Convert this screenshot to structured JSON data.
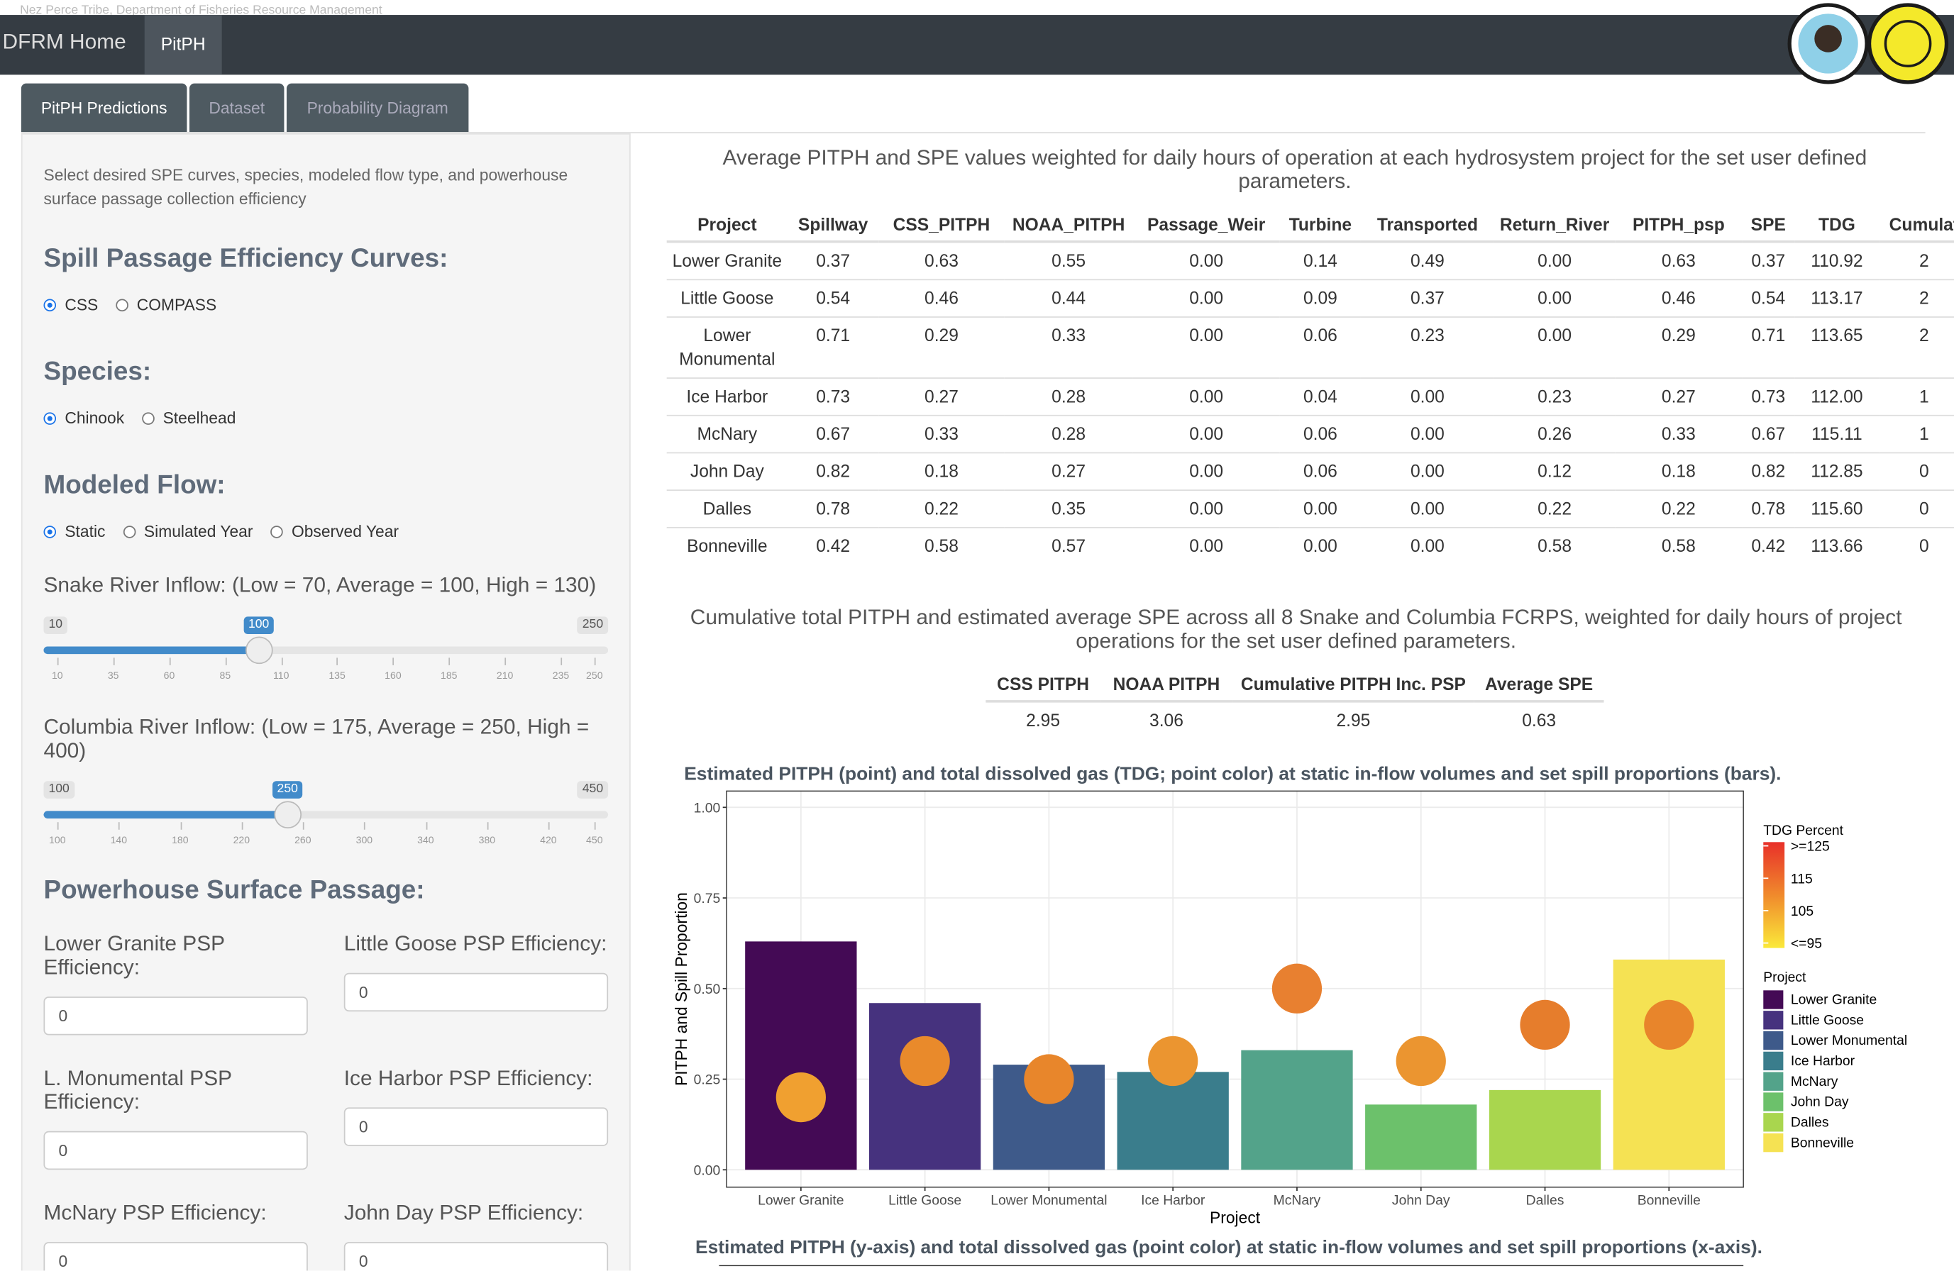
{
  "header": {
    "org": "Nez Perce Tribe, Department of Fisheries Resource Management",
    "brand": "DFRM Home",
    "nav": [
      "PitPH"
    ]
  },
  "tabs": [
    {
      "label": "PitPH Predictions",
      "active": true
    },
    {
      "label": "Dataset",
      "active": false
    },
    {
      "label": "Probability Diagram",
      "active": false
    }
  ],
  "sidebar": {
    "intro": "Select desired SPE curves, species, modeled flow type, and powerhouse surface passage collection efficiency",
    "radio_groups": [
      {
        "title": "Spill Passage Efficiency Curves:",
        "options": [
          {
            "label": "CSS",
            "checked": true
          },
          {
            "label": "COMPASS",
            "checked": false
          }
        ]
      },
      {
        "title": "Species:",
        "options": [
          {
            "label": "Chinook",
            "checked": true
          },
          {
            "label": "Steelhead",
            "checked": false
          }
        ]
      },
      {
        "title": "Modeled Flow:",
        "options": [
          {
            "label": "Static",
            "checked": true
          },
          {
            "label": "Simulated Year",
            "checked": false
          },
          {
            "label": "Observed Year",
            "checked": false
          }
        ]
      }
    ],
    "sliders": [
      {
        "label": "Snake River Inflow: (Low = 70, Average = 100, High = 130)",
        "min": 10,
        "max": 250,
        "value": 100,
        "ticks": [
          10,
          35,
          60,
          85,
          110,
          135,
          160,
          185,
          210,
          235,
          250
        ]
      },
      {
        "label": "Columbia River Inflow: (Low = 175, Average = 250, High = 400)",
        "min": 100,
        "max": 450,
        "value": 250,
        "ticks": [
          100,
          140,
          180,
          220,
          260,
          300,
          340,
          380,
          420,
          450
        ]
      }
    ],
    "psp_title": "Powerhouse Surface Passage:",
    "psp_fields": [
      {
        "label": "Lower Granite PSP Efficiency:",
        "value": "0"
      },
      {
        "label": "Little Goose PSP Efficiency:",
        "value": "0"
      },
      {
        "label": "L. Monumental PSP Efficiency:",
        "value": "0"
      },
      {
        "label": "Ice Harbor PSP Efficiency:",
        "value": "0"
      },
      {
        "label": "McNary PSP Efficiency:",
        "value": "0"
      },
      {
        "label": "John Day PSP Efficiency:",
        "value": "0"
      }
    ]
  },
  "table1": {
    "caption": "Average PITPH and SPE values weighted for daily hours of operation at each hydrosystem project for the set user defined parameters.",
    "columns": [
      "Project",
      "Spillway",
      "CSS_PITPH",
      "NOAA_PITPH",
      "Passage_Weir",
      "Turbine",
      "Transported",
      "Return_River",
      "PITPH_psp",
      "SPE",
      "TDG",
      "Cumulat"
    ],
    "rows": [
      [
        "Lower Granite",
        "0.37",
        "0.63",
        "0.55",
        "0.00",
        "0.14",
        "0.49",
        "0.00",
        "0.63",
        "0.37",
        "110.92",
        "2"
      ],
      [
        "Little Goose",
        "0.54",
        "0.46",
        "0.44",
        "0.00",
        "0.09",
        "0.37",
        "0.00",
        "0.46",
        "0.54",
        "113.17",
        "2"
      ],
      [
        "Lower Monumental",
        "0.71",
        "0.29",
        "0.33",
        "0.00",
        "0.06",
        "0.23",
        "0.00",
        "0.29",
        "0.71",
        "113.65",
        "2"
      ],
      [
        "Ice Harbor",
        "0.73",
        "0.27",
        "0.28",
        "0.00",
        "0.04",
        "0.00",
        "0.23",
        "0.27",
        "0.73",
        "112.00",
        "1"
      ],
      [
        "McNary",
        "0.67",
        "0.33",
        "0.28",
        "0.00",
        "0.06",
        "0.00",
        "0.26",
        "0.33",
        "0.67",
        "115.11",
        "1"
      ],
      [
        "John Day",
        "0.82",
        "0.18",
        "0.27",
        "0.00",
        "0.06",
        "0.00",
        "0.12",
        "0.18",
        "0.82",
        "112.85",
        "0"
      ],
      [
        "Dalles",
        "0.78",
        "0.22",
        "0.35",
        "0.00",
        "0.00",
        "0.00",
        "0.22",
        "0.22",
        "0.78",
        "115.60",
        "0"
      ],
      [
        "Bonneville",
        "0.42",
        "0.58",
        "0.57",
        "0.00",
        "0.00",
        "0.00",
        "0.58",
        "0.58",
        "0.42",
        "113.66",
        "0"
      ]
    ]
  },
  "table2": {
    "caption": "Cumulative total PITPH and estimated average SPE across all 8 Snake and Columbia FCRPS, weighted for daily hours of project operations for the set user defined parameters.",
    "columns": [
      "CSS PITPH",
      "NOAA PITPH",
      "Cumulative PITPH Inc. PSP",
      "Average SPE"
    ],
    "rows": [
      [
        "2.95",
        "3.06",
        "2.95",
        "0.63"
      ]
    ]
  },
  "chart_data": {
    "type": "bar",
    "title": "Estimated PITPH (point) and total dissolved gas (TDG; point color) at static in-flow volumes and set spill proportions (bars).",
    "y_label": "PITPH and Spill Proportion",
    "x_label": "Project",
    "categories": [
      "Lower Granite",
      "Little Goose",
      "Lower Monumental",
      "Ice Harbor",
      "McNary",
      "John Day",
      "Dalles",
      "Bonneville"
    ],
    "bar_values": [
      0.63,
      0.46,
      0.29,
      0.27,
      0.33,
      0.18,
      0.22,
      0.58
    ],
    "bar_colors": [
      "#440a55",
      "#46327e",
      "#3e5a8a",
      "#3a7d8c",
      "#53a38a",
      "#6cc16b",
      "#a9d64e",
      "#f5e253"
    ],
    "point_values": [
      0.2,
      0.3,
      0.25,
      0.3,
      0.5,
      0.3,
      0.4,
      0.4
    ],
    "point_colors": [
      "#f0a030",
      "#e98a2b",
      "#e8862b",
      "#eb9530",
      "#e88030",
      "#eb9530",
      "#e67d2c",
      "#e8852b"
    ],
    "ylim": [
      -0.048,
      1.045
    ],
    "yticks": [
      {
        "value": 0,
        "label": "0.00"
      },
      {
        "value": 0.25,
        "label": "0.25"
      },
      {
        "value": 0.5,
        "label": "0.50"
      },
      {
        "value": 0.75,
        "label": "0.75"
      },
      {
        "value": 1,
        "label": "1.00"
      }
    ],
    "grid": true,
    "colorbar": {
      "title": "TDG Percent",
      "ticks": [
        {
          "value": 125,
          "label": ">=125"
        },
        115,
        105,
        {
          "value": 95,
          "label": "<=95"
        }
      ],
      "colors": [
        "#e8302a",
        "#f08a2c",
        "#fbe93a"
      ]
    },
    "legend_title": "Project"
  },
  "chart2": {
    "title": "Estimated PITPH (y-axis) and total dissolved gas (point color) at static in-flow volumes and set spill proportions (x-axis)."
  }
}
